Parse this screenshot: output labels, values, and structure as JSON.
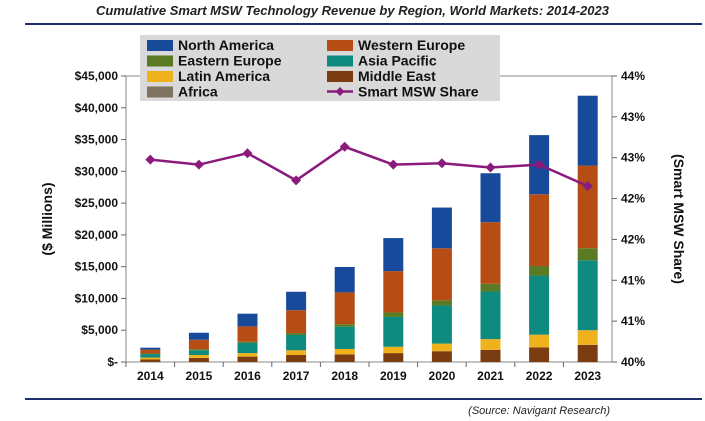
{
  "chart_data": {
    "type": "bar",
    "title": "Cumulative Smart MSW Technology Revenue by Region, World Markets: 2014-2023",
    "source": "(Source: Navigant Research)",
    "ylabel": "($ Millions)",
    "y2label": "(Smart MSW Share)",
    "categories": [
      "2014",
      "2015",
      "2016",
      "2017",
      "2018",
      "2019",
      "2020",
      "2021",
      "2022",
      "2023"
    ],
    "ylim": [
      0,
      45000
    ],
    "yticks": [
      "$-",
      "$5,000",
      "$10,000",
      "$15,000",
      "$20,000",
      "$25,000",
      "$30,000",
      "$35,000",
      "$40,000",
      "$45,000"
    ],
    "y2lim": [
      40,
      44
    ],
    "y2ticks": [
      "40%",
      "41%",
      "41%",
      "42%",
      "42%",
      "43%",
      "43%",
      "44%"
    ],
    "legend_position": "top",
    "series": [
      {
        "name": "Middle East",
        "color": "#7a3c10",
        "values": [
          400,
          650,
          850,
          1100,
          1200,
          1400,
          1700,
          1900,
          2300,
          2700
        ]
      },
      {
        "name": "Latin America",
        "color": "#f0b21c",
        "values": [
          300,
          450,
          550,
          750,
          850,
          1000,
          1200,
          1700,
          2000,
          2300
        ]
      },
      {
        "name": "Asia Pacific",
        "color": "#0e8a7f",
        "values": [
          550,
          750,
          1600,
          2400,
          3500,
          4700,
          6000,
          7500,
          9300,
          11000
        ]
      },
      {
        "name": "Eastern Europe",
        "color": "#5a7a23",
        "values": [
          100,
          150,
          200,
          300,
          400,
          700,
          800,
          1200,
          1500,
          1900
        ]
      },
      {
        "name": "Western Europe",
        "color": "#b54d15",
        "values": [
          600,
          1500,
          2400,
          3600,
          5000,
          6500,
          8200,
          9700,
          11300,
          13000
        ]
      },
      {
        "name": "North America",
        "color": "#174a9a",
        "values": [
          300,
          1100,
          2000,
          2900,
          4000,
          5200,
          6400,
          7700,
          9300,
          11000
        ]
      },
      {
        "name": "Africa",
        "color": "#7f7461",
        "values": [
          0,
          0,
          0,
          0,
          0,
          0,
          0,
          0,
          0,
          0
        ]
      }
    ],
    "share_series": {
      "name": "Smart MSW Share",
      "color": "#8b1a7d",
      "values": [
        42.83,
        42.76,
        42.92,
        42.54,
        43.01,
        42.76,
        42.78,
        42.72,
        42.76,
        42.46
      ]
    },
    "legend_order": [
      "North America",
      "Western Europe",
      "Eastern Europe",
      "Asia Pacific",
      "Latin America",
      "Middle East",
      "Africa",
      "Smart MSW Share"
    ]
  }
}
